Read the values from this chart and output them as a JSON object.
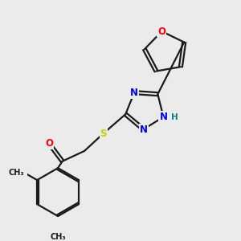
{
  "bg_color": "#ebebeb",
  "bond_color": "#1a1a1a",
  "bond_width": 1.6,
  "atom_colors": {
    "O": "#ff0000",
    "N": "#0000ff",
    "S": "#cccc00",
    "H": "#008080",
    "C": "#1a1a1a"
  },
  "font_size_atom": 8.5,
  "font_size_H": 7.5,
  "font_size_methyl": 7.0
}
